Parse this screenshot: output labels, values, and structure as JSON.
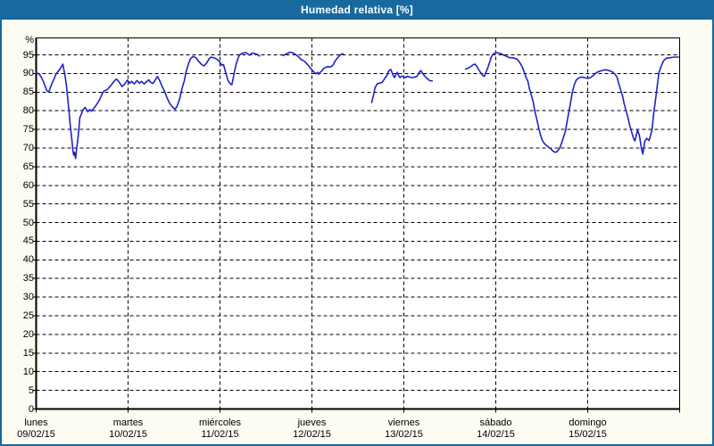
{
  "window": {
    "title": "Humedad relativa [%]"
  },
  "colors": {
    "titlebar": "#17699e",
    "window_bg": "#fcfcf2",
    "plot_bg": "#ffffff",
    "axis": "#000000",
    "line": "#2121c8"
  },
  "chart_data": {
    "type": "line",
    "title": "Humedad relativa [%]",
    "y_unit": "%",
    "ylabel": "",
    "xlabel": "",
    "ylim": [
      0,
      95
    ],
    "y_ticks": [
      0,
      5,
      10,
      15,
      20,
      25,
      30,
      35,
      40,
      45,
      50,
      55,
      60,
      65,
      70,
      75,
      80,
      85,
      90,
      95
    ],
    "grid": "dashed",
    "legend": "none",
    "t_unit": "hours_since_monday_00:00",
    "x_axis": {
      "days": [
        {
          "name": "lunes",
          "date": "09/02/15"
        },
        {
          "name": "martes",
          "date": "10/02/15"
        },
        {
          "name": "miércoles",
          "date": "11/02/15"
        },
        {
          "name": "jueves",
          "date": "12/02/15"
        },
        {
          "name": "viernes",
          "date": "13/02/15"
        },
        {
          "name": "sábado",
          "date": "14/02/15"
        },
        {
          "name": "domingo",
          "date": "15/02/15"
        }
      ],
      "span_days": 7
    },
    "series": [
      {
        "name": "Humedad relativa",
        "unit": "%",
        "color": "#2121c8",
        "segments": [
          [
            [
              0,
              90.2
            ],
            [
              0.5,
              90
            ],
            [
              0.9,
              89.7
            ],
            [
              1.4,
              88.9
            ],
            [
              1.9,
              87.8
            ],
            [
              2.3,
              86.7
            ],
            [
              2.8,
              85.4
            ],
            [
              3.3,
              85
            ],
            [
              3.7,
              86.2
            ],
            [
              4.2,
              87.5
            ],
            [
              4.7,
              88.6
            ],
            [
              5.1,
              89.7
            ],
            [
              5.6,
              90.4
            ],
            [
              6.1,
              91
            ],
            [
              6.5,
              91.7
            ],
            [
              7,
              92.5
            ],
            [
              7.2,
              91.2
            ],
            [
              7.5,
              89.7
            ],
            [
              7.9,
              86.9
            ],
            [
              8.2,
              83.7
            ],
            [
              8.6,
              79.7
            ],
            [
              8.9,
              76.1
            ],
            [
              9.3,
              72.5
            ],
            [
              9.6,
              69.3
            ],
            [
              9.8,
              68.1
            ],
            [
              10,
              68.9
            ],
            [
              10.3,
              67.2
            ],
            [
              10.5,
              69.3
            ],
            [
              10.9,
              72.5
            ],
            [
              11.2,
              75.7
            ],
            [
              11.4,
              78.1
            ],
            [
              11.9,
              79.3
            ],
            [
              12.1,
              80.1
            ],
            [
              12.6,
              80.7
            ],
            [
              12.8,
              80.9
            ],
            [
              13.3,
              80.1
            ],
            [
              13.5,
              79.7
            ],
            [
              14,
              80.3
            ],
            [
              14.4,
              79.9
            ],
            [
              14.9,
              80.5
            ],
            [
              15.4,
              81.1
            ],
            [
              15.8,
              81.7
            ],
            [
              16.3,
              82.5
            ],
            [
              16.8,
              83.5
            ],
            [
              17.2,
              84.5
            ],
            [
              17.7,
              85.3
            ],
            [
              18.6,
              85.7
            ],
            [
              19.6,
              86.9
            ],
            [
              20.5,
              88.1
            ],
            [
              21,
              88.5
            ],
            [
              21.7,
              87.7
            ],
            [
              22.4,
              86.5
            ],
            [
              23.1,
              87.1
            ],
            [
              23.8,
              88.2
            ],
            [
              24.5,
              87.4
            ],
            [
              24.9,
              87.9
            ],
            [
              25.6,
              87.2
            ],
            [
              26.3,
              88.1
            ],
            [
              27,
              87.4
            ],
            [
              27.5,
              87.9
            ],
            [
              28.2,
              87.2
            ],
            [
              28.7,
              87.7
            ],
            [
              29.4,
              88.3
            ],
            [
              29.8,
              87.7
            ],
            [
              30.5,
              87.3
            ],
            [
              31,
              88.1
            ],
            [
              31.7,
              89.2
            ],
            [
              32.2,
              88.2
            ],
            [
              32.9,
              86.5
            ],
            [
              33.6,
              85
            ],
            [
              34.2,
              83.4
            ],
            [
              34.9,
              81.9
            ],
            [
              35.7,
              80.9
            ],
            [
              36.3,
              80.4
            ],
            [
              36.8,
              81.2
            ],
            [
              37.5,
              83.3
            ],
            [
              38,
              85.7
            ],
            [
              38.7,
              88.1
            ],
            [
              39.1,
              90.3
            ],
            [
              39.8,
              92.7
            ],
            [
              40.3,
              94
            ],
            [
              41,
              94.6
            ],
            [
              41.7,
              94.2
            ],
            [
              42.4,
              93.3
            ],
            [
              43.1,
              92.5
            ],
            [
              43.8,
              92
            ],
            [
              44.5,
              92.8
            ],
            [
              45.2,
              94
            ],
            [
              45.7,
              94.4
            ],
            [
              46.4,
              94.2
            ],
            [
              47.1,
              93.9
            ],
            [
              47.8,
              93.3
            ],
            [
              48.5,
              92.2
            ],
            [
              48.9,
              92.4
            ],
            [
              49.6,
              89.8
            ],
            [
              50.1,
              88.1
            ],
            [
              50.7,
              87.2
            ],
            [
              51.1,
              87
            ],
            [
              51.5,
              89
            ],
            [
              52.1,
              92.1
            ],
            [
              52.7,
              94.1
            ],
            [
              53.1,
              95
            ],
            [
              53.8,
              95.4
            ],
            [
              54.8,
              95.6
            ],
            [
              55.7,
              94.9
            ],
            [
              56.4,
              95.5
            ],
            [
              57.1,
              95.3
            ],
            [
              57.8,
              95.1
            ],
            [
              58.3,
              94.7
            ]
          ],
          [
            [
              64.5,
              94.8
            ],
            [
              65.2,
              95.2
            ],
            [
              66.2,
              95.7
            ],
            [
              66.9,
              95.6
            ],
            [
              67.6,
              95.2
            ],
            [
              68.5,
              94.5
            ],
            [
              69.2,
              93.7
            ],
            [
              69.9,
              93.4
            ],
            [
              70.6,
              92.7
            ],
            [
              71.3,
              91.9
            ],
            [
              71.8,
              91.2
            ],
            [
              72.2,
              90.7
            ],
            [
              72.7,
              90.2
            ],
            [
              73,
              89.9
            ],
            [
              73.4,
              90.3
            ],
            [
              73.7,
              89.8
            ],
            [
              74.1,
              90.3
            ],
            [
              74.6,
              90.7
            ],
            [
              75,
              91.3
            ],
            [
              75.5,
              91.6
            ],
            [
              76.2,
              91.9
            ],
            [
              76.6,
              91.7
            ],
            [
              77.1,
              91.9
            ],
            [
              77.6,
              92.4
            ],
            [
              78,
              93.3
            ],
            [
              78.7,
              94.2
            ],
            [
              79.4,
              95
            ],
            [
              80.1,
              95.3
            ]
          ],
          [
            [
              87.6,
              82.2
            ],
            [
              88.1,
              84.3
            ],
            [
              88.5,
              86.3
            ],
            [
              89.1,
              87.3
            ],
            [
              89.7,
              87.4
            ],
            [
              90.3,
              87.6
            ],
            [
              90.9,
              88.5
            ],
            [
              91.6,
              89.5
            ],
            [
              92,
              90.6
            ],
            [
              92.6,
              91.1
            ],
            [
              93.2,
              89.5
            ],
            [
              93.6,
              88.9
            ],
            [
              93.9,
              89.7
            ],
            [
              94.3,
              90.3
            ],
            [
              94.6,
              89.5
            ],
            [
              95,
              88.9
            ],
            [
              95.5,
              89.3
            ],
            [
              96,
              89.1
            ],
            [
              96.5,
              88.9
            ],
            [
              96.9,
              89.3
            ],
            [
              97.3,
              89.1
            ],
            [
              98.1,
              88.9
            ],
            [
              98.8,
              89
            ],
            [
              99.5,
              89.3
            ],
            [
              99.9,
              90.1
            ],
            [
              100.4,
              90.8
            ],
            [
              100.9,
              90.1
            ],
            [
              101.3,
              89.5
            ],
            [
              101.8,
              88.9
            ],
            [
              102.3,
              88.5
            ],
            [
              102.7,
              88.1
            ],
            [
              103.4,
              88
            ]
          ],
          [
            [
              112.1,
              91.2
            ],
            [
              112.8,
              91.4
            ],
            [
              113.5,
              91.9
            ],
            [
              114.2,
              92.4
            ],
            [
              114.6,
              92.5
            ],
            [
              115.1,
              91.8
            ],
            [
              115.8,
              90.6
            ],
            [
              116.5,
              89.6
            ],
            [
              117,
              89.2
            ],
            [
              117.4,
              90.2
            ],
            [
              117.9,
              91.5
            ],
            [
              118.4,
              93
            ],
            [
              118.8,
              94.4
            ],
            [
              119.3,
              95.2
            ],
            [
              120,
              95.6
            ],
            [
              120.7,
              95.5
            ],
            [
              121.4,
              95.3
            ],
            [
              122.1,
              94.9
            ],
            [
              122.8,
              94.6
            ],
            [
              123.5,
              94.3
            ],
            [
              124.2,
              94.2
            ],
            [
              124.9,
              94.1
            ],
            [
              125.6,
              93.8
            ],
            [
              126,
              93.3
            ],
            [
              126.5,
              92.5
            ],
            [
              127,
              91.6
            ],
            [
              127.4,
              90.4
            ],
            [
              127.9,
              89
            ],
            [
              128.4,
              87.8
            ],
            [
              128.8,
              85.8
            ],
            [
              129.3,
              84.2
            ],
            [
              129.8,
              82.2
            ],
            [
              130.2,
              79.8
            ],
            [
              130.7,
              77.8
            ],
            [
              131.2,
              75.4
            ],
            [
              131.6,
              73.8
            ],
            [
              132.1,
              72.2
            ],
            [
              132.6,
              71.3
            ],
            [
              133,
              70.9
            ],
            [
              133.5,
              70.5
            ],
            [
              134,
              70.1
            ],
            [
              134.4,
              69.8
            ],
            [
              134.9,
              69.2
            ],
            [
              135.4,
              68.9
            ],
            [
              135.8,
              68.9
            ],
            [
              136.3,
              69.4
            ],
            [
              136.8,
              70.2
            ],
            [
              137.2,
              71.4
            ],
            [
              137.7,
              73
            ],
            [
              138.2,
              74.6
            ],
            [
              138.6,
              77
            ],
            [
              139.1,
              79.8
            ],
            [
              139.6,
              82.6
            ],
            [
              140,
              85
            ],
            [
              140.5,
              87
            ],
            [
              141,
              88.2
            ],
            [
              141.4,
              88.6
            ],
            [
              142.1,
              89
            ],
            [
              142.8,
              89
            ],
            [
              143.5,
              88.8
            ],
            [
              144,
              88.7
            ],
            [
              144.7,
              88.9
            ],
            [
              145.4,
              89.4
            ],
            [
              146.1,
              90.1
            ],
            [
              146.8,
              90.5
            ],
            [
              147.7,
              90.8
            ],
            [
              148.6,
              91
            ],
            [
              149.6,
              90.8
            ],
            [
              150.5,
              90.4
            ],
            [
              151.2,
              89.7
            ],
            [
              151.7,
              88.9
            ],
            [
              152.1,
              87.3
            ],
            [
              152.6,
              85.6
            ],
            [
              153.1,
              83.9
            ],
            [
              153.5,
              81.9
            ],
            [
              154,
              80.1
            ],
            [
              154.5,
              78.2
            ],
            [
              154.9,
              76.3
            ],
            [
              155.4,
              74.6
            ],
            [
              155.9,
              72.8
            ],
            [
              156.3,
              71.9
            ],
            [
              156.6,
              73
            ],
            [
              157,
              74.9
            ],
            [
              157.5,
              73.4
            ],
            [
              158,
              70
            ],
            [
              158.4,
              68.4
            ],
            [
              158.9,
              71.8
            ],
            [
              159.4,
              72.6
            ],
            [
              160,
              72
            ],
            [
              160.3,
              73
            ],
            [
              160.8,
              75
            ],
            [
              161.2,
              79
            ],
            [
              161.7,
              83
            ],
            [
              162.2,
              87
            ],
            [
              162.6,
              90.2
            ],
            [
              163.1,
              91.8
            ],
            [
              163.8,
              93.4
            ],
            [
              164.5,
              94.1
            ],
            [
              165.4,
              94.2
            ],
            [
              166.6,
              94.4
            ],
            [
              167.7,
              94.4
            ]
          ]
        ]
      }
    ]
  }
}
